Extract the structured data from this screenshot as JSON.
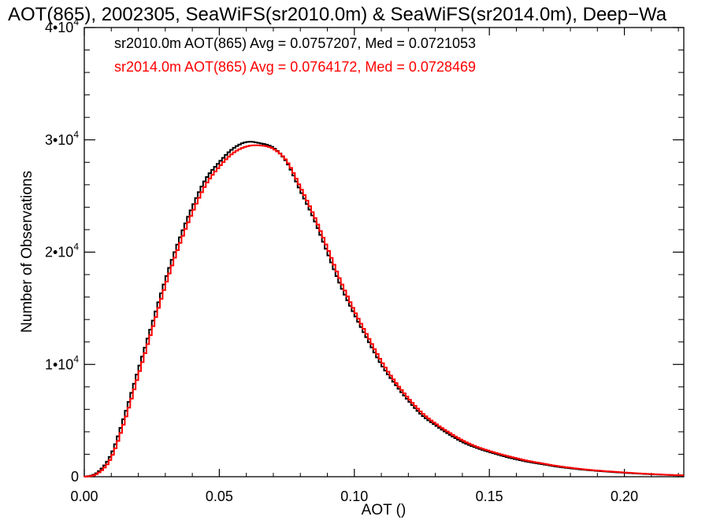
{
  "chart_data": {
    "type": "line",
    "title": "AOT(865), 2002305, SeaWiFS(sr2010.0m) & SeaWiFS(sr2014.0m), Deep−Wa",
    "xlabel": "AOT ()",
    "ylabel": "Number of Observations",
    "xlim": [
      0.0,
      0.222
    ],
    "ylim": [
      0,
      40000
    ],
    "x_ticks": [
      {
        "value": 0.0,
        "label": "0.00"
      },
      {
        "value": 0.05,
        "label": "0.05"
      },
      {
        "value": 0.1,
        "label": "0.10"
      },
      {
        "value": 0.15,
        "label": "0.15"
      },
      {
        "value": 0.2,
        "label": "0.20"
      }
    ],
    "y_ticks": [
      {
        "value": 0,
        "mant": "0",
        "exp": ""
      },
      {
        "value": 10000,
        "mant": "1•10",
        "exp": "4"
      },
      {
        "value": 20000,
        "mant": "2•10",
        "exp": "4"
      },
      {
        "value": 30000,
        "mant": "3•10",
        "exp": "4"
      },
      {
        "value": 40000,
        "mant": "4•10",
        "exp": "4"
      }
    ],
    "grid": false,
    "legend_position": "top-left",
    "x": [
      0.0,
      0.005,
      0.01,
      0.015,
      0.02,
      0.025,
      0.03,
      0.035,
      0.04,
      0.045,
      0.05,
      0.055,
      0.06,
      0.065,
      0.07,
      0.075,
      0.08,
      0.085,
      0.09,
      0.095,
      0.1,
      0.105,
      0.11,
      0.115,
      0.12,
      0.125,
      0.13,
      0.135,
      0.14,
      0.145,
      0.15,
      0.155,
      0.16,
      0.165,
      0.17,
      0.175,
      0.18,
      0.185,
      0.19,
      0.195,
      0.2,
      0.205,
      0.21,
      0.215,
      0.222
    ],
    "series": [
      {
        "legend": "sr2010.0m AOT(865) Avg = 0.0757207, Med = 0.0721053",
        "color": "#000000",
        "y": [
          0,
          400,
          2000,
          5500,
          9500,
          13500,
          17500,
          21000,
          24000,
          26500,
          28000,
          29200,
          29800,
          29700,
          29300,
          28000,
          25500,
          23000,
          20000,
          17000,
          14500,
          12200,
          10000,
          8300,
          6800,
          5500,
          4600,
          3800,
          3100,
          2600,
          2200,
          1850,
          1550,
          1300,
          1100,
          900,
          750,
          620,
          520,
          430,
          350,
          280,
          220,
          170,
          120
        ]
      },
      {
        "legend": "sr2014.0m AOT(865) Avg = 0.0764172, Med = 0.0728469",
        "color": "#ff0000",
        "y": [
          0,
          300,
          1700,
          5000,
          9000,
          13000,
          17000,
          20500,
          23500,
          26000,
          27600,
          28800,
          29400,
          29500,
          29200,
          28100,
          25800,
          23300,
          20400,
          17400,
          14800,
          12500,
          10300,
          8500,
          7000,
          5700,
          4750,
          3950,
          3250,
          2700,
          2300,
          1950,
          1650,
          1380,
          1170,
          960,
          800,
          660,
          550,
          460,
          380,
          300,
          240,
          180,
          130
        ]
      }
    ]
  }
}
